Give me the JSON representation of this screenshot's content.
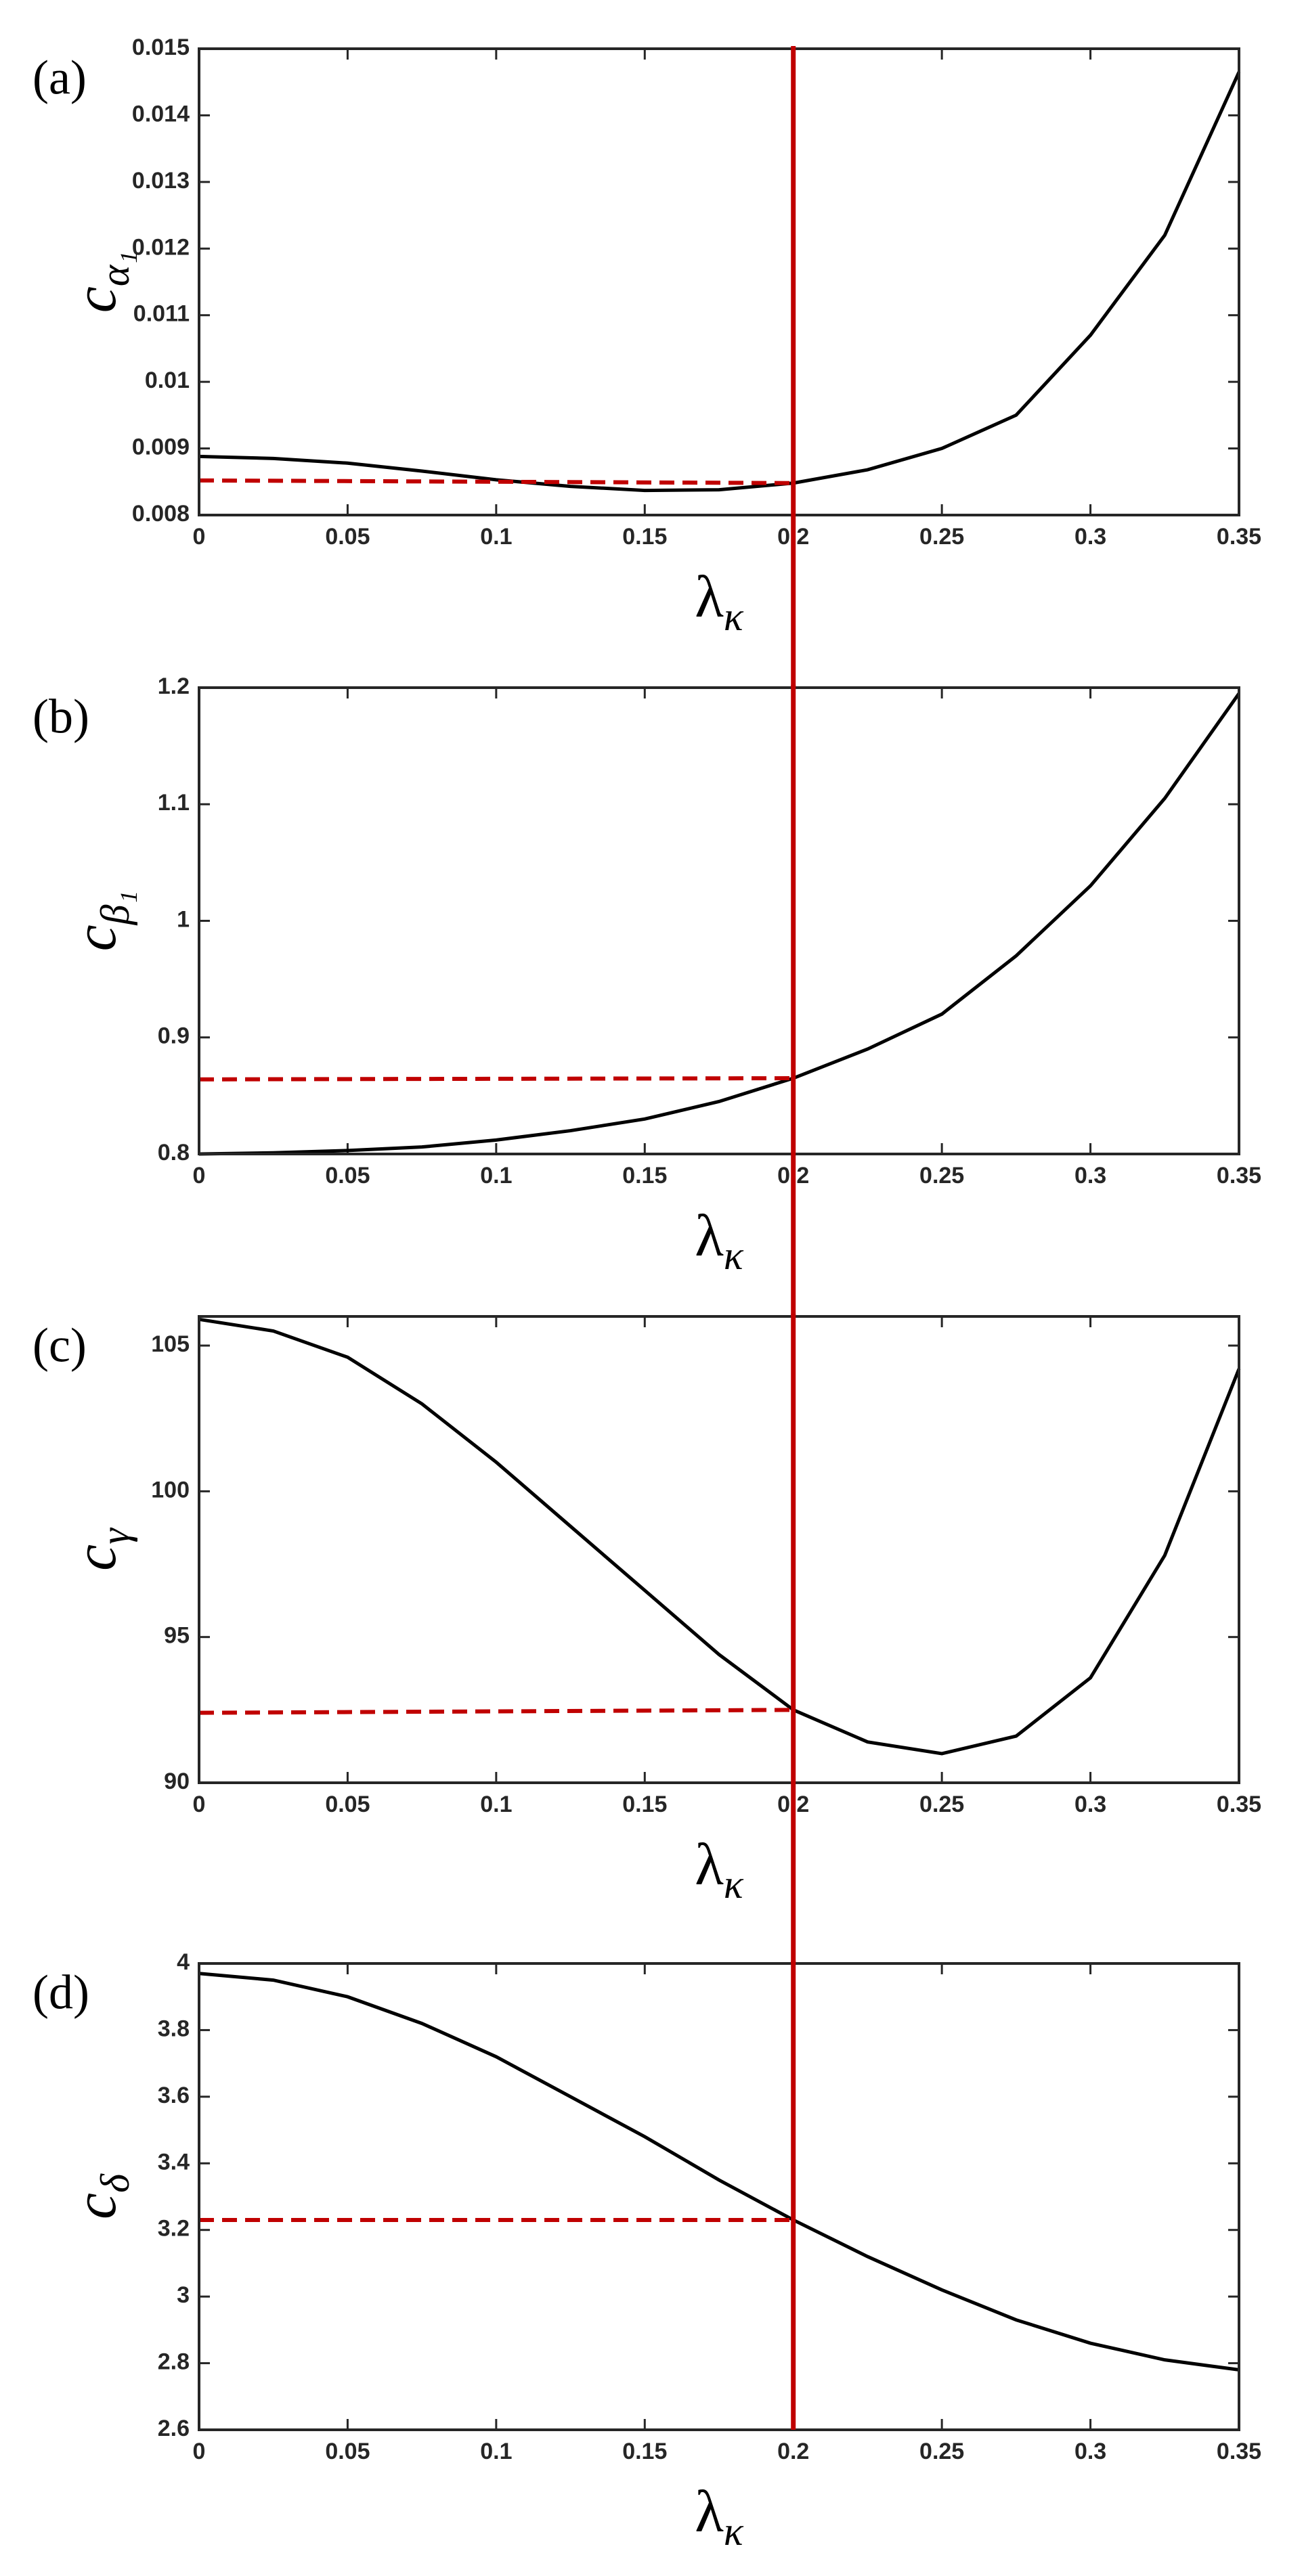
{
  "chart_data": [
    {
      "type": "line",
      "panel_label": "(a)",
      "xlabel": "λ",
      "xlabel_subscript": "κ",
      "ylabel": "c",
      "ylabel_subscript": "α₁",
      "x": [
        0,
        0.025,
        0.05,
        0.075,
        0.1,
        0.125,
        0.15,
        0.175,
        0.2,
        0.225,
        0.25,
        0.275,
        0.3,
        0.325,
        0.35
      ],
      "series": [
        {
          "color": "#000000",
          "values": [
            0.00888,
            0.00885,
            0.00878,
            0.00866,
            0.00853,
            0.00843,
            0.00837,
            0.00838,
            0.00848,
            0.00868,
            0.009,
            0.0095,
            0.0107,
            0.0122,
            0.01465
          ]
        }
      ],
      "reference": {
        "x": [
          0,
          0.2
        ],
        "values": [
          0.00852,
          0.00848
        ],
        "color": "#c00000"
      },
      "vline": {
        "x": 0.2,
        "color": "#c00000"
      },
      "xlim": [
        0,
        0.35
      ],
      "xticks": [
        0,
        0.05,
        0.1,
        0.15,
        0.2,
        0.25,
        0.3,
        0.35
      ],
      "ylim": [
        0.008,
        0.015
      ],
      "yticks": [
        0.008,
        0.009,
        0.01,
        0.011,
        0.012,
        0.013,
        0.014,
        0.015
      ]
    },
    {
      "type": "line",
      "panel_label": "(b)",
      "xlabel": "λ",
      "xlabel_subscript": "κ",
      "ylabel": "c",
      "ylabel_subscript": "β₁",
      "x": [
        0,
        0.025,
        0.05,
        0.075,
        0.1,
        0.125,
        0.15,
        0.175,
        0.2,
        0.225,
        0.25,
        0.275,
        0.3,
        0.325,
        0.35
      ],
      "series": [
        {
          "color": "#000000",
          "values": [
            0.8,
            0.801,
            0.803,
            0.806,
            0.812,
            0.82,
            0.83,
            0.845,
            0.865,
            0.89,
            0.92,
            0.97,
            1.03,
            1.105,
            1.195
          ]
        }
      ],
      "reference": {
        "x": [
          0,
          0.2
        ],
        "values": [
          0.864,
          0.865
        ],
        "color": "#c00000"
      },
      "vline": {
        "x": 0.2,
        "color": "#c00000"
      },
      "xlim": [
        0,
        0.35
      ],
      "xticks": [
        0,
        0.05,
        0.1,
        0.15,
        0.2,
        0.25,
        0.3,
        0.35
      ],
      "ylim": [
        0.8,
        1.2
      ],
      "yticks": [
        0.8,
        0.9,
        1,
        1.1,
        1.2
      ]
    },
    {
      "type": "line",
      "panel_label": "(c)",
      "xlabel": "λ",
      "xlabel_subscript": "κ",
      "ylabel": "c",
      "ylabel_subscript": "γ",
      "x": [
        0,
        0.025,
        0.05,
        0.075,
        0.1,
        0.125,
        0.15,
        0.175,
        0.2,
        0.225,
        0.25,
        0.275,
        0.3,
        0.325,
        0.35
      ],
      "series": [
        {
          "color": "#000000",
          "values": [
            105.9,
            105.5,
            104.6,
            103.0,
            101.0,
            98.8,
            96.6,
            94.4,
            92.5,
            91.4,
            91.0,
            91.6,
            93.6,
            97.8,
            104.2
          ]
        }
      ],
      "reference": {
        "x": [
          0,
          0.2
        ],
        "values": [
          92.4,
          92.5
        ],
        "color": "#c00000"
      },
      "vline": {
        "x": 0.2,
        "color": "#c00000"
      },
      "xlim": [
        0,
        0.35
      ],
      "xticks": [
        0,
        0.05,
        0.1,
        0.15,
        0.2,
        0.25,
        0.3,
        0.35
      ],
      "ylim": [
        90,
        106
      ],
      "yticks": [
        90,
        95,
        100,
        105
      ]
    },
    {
      "type": "line",
      "panel_label": "(d)",
      "xlabel": "λ",
      "xlabel_subscript": "κ",
      "ylabel": "c",
      "ylabel_subscript": "δ",
      "x": [
        0,
        0.025,
        0.05,
        0.075,
        0.1,
        0.125,
        0.15,
        0.175,
        0.2,
        0.225,
        0.25,
        0.275,
        0.3,
        0.325,
        0.35
      ],
      "series": [
        {
          "color": "#000000",
          "values": [
            3.97,
            3.95,
            3.9,
            3.82,
            3.72,
            3.6,
            3.48,
            3.35,
            3.23,
            3.12,
            3.02,
            2.93,
            2.86,
            2.81,
            2.78
          ]
        }
      ],
      "reference": {
        "x": [
          0,
          0.2
        ],
        "values": [
          3.23,
          3.23
        ],
        "color": "#c00000"
      },
      "vline": {
        "x": 0.2,
        "color": "#c00000"
      },
      "xlim": [
        0,
        0.35
      ],
      "xticks": [
        0,
        0.05,
        0.1,
        0.15,
        0.2,
        0.25,
        0.3,
        0.35
      ],
      "ylim": [
        2.6,
        4
      ],
      "yticks": [
        2.6,
        2.8,
        3,
        3.2,
        3.4,
        3.6,
        3.8,
        4
      ]
    }
  ]
}
